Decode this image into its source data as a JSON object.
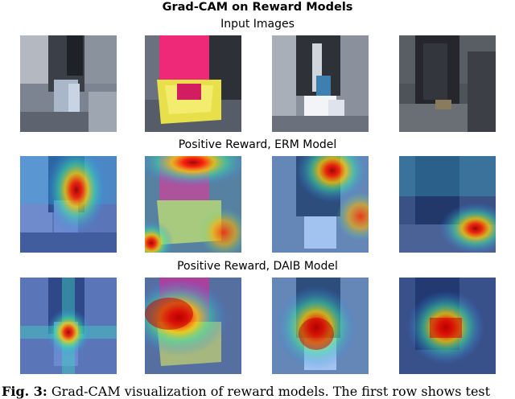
{
  "figure": {
    "title": "Grad-CAM on Reward Models",
    "rows": [
      {
        "label": "Input Images"
      },
      {
        "label": "Positive Reward, ERM Model"
      },
      {
        "label": "Positive Reward, DAIB Model"
      }
    ],
    "caption": {
      "label": "Fig. 3:",
      "text": " Grad-CAM visualization of reward models. The first row shows test"
    }
  }
}
